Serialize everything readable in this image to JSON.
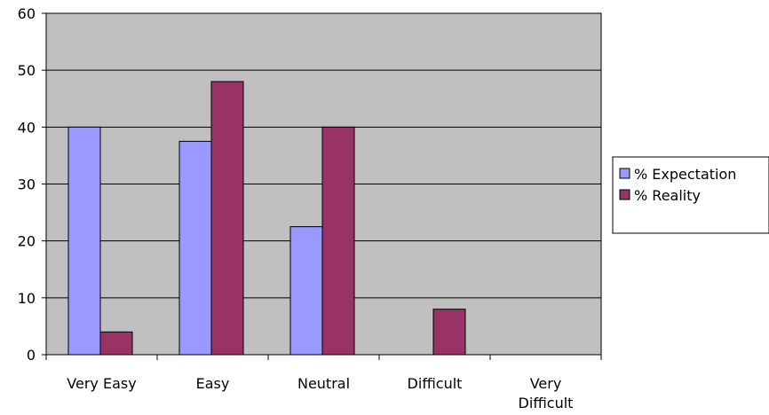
{
  "chart_data": {
    "type": "bar",
    "categories": [
      "Very Easy",
      "Easy",
      "Neutral",
      "Difficult",
      "Very Difficult"
    ],
    "category_lines": [
      [
        "Very Easy"
      ],
      [
        "Easy"
      ],
      [
        "Neutral"
      ],
      [
        "Difficult"
      ],
      [
        "Very",
        "Difficult"
      ]
    ],
    "series": [
      {
        "name": "% Expectation",
        "color": "#9999ff",
        "values": [
          40,
          37.5,
          22.5,
          0,
          0
        ]
      },
      {
        "name": "% Reality",
        "color": "#993366",
        "values": [
          4,
          48,
          40,
          8,
          0
        ]
      }
    ],
    "ylim": [
      0,
      60
    ],
    "yticks": [
      0,
      10,
      20,
      30,
      40,
      50,
      60
    ],
    "grid": true,
    "plot_background": "#c0c0c0",
    "legend_position": "right",
    "title": "",
    "xlabel": "",
    "ylabel": ""
  }
}
